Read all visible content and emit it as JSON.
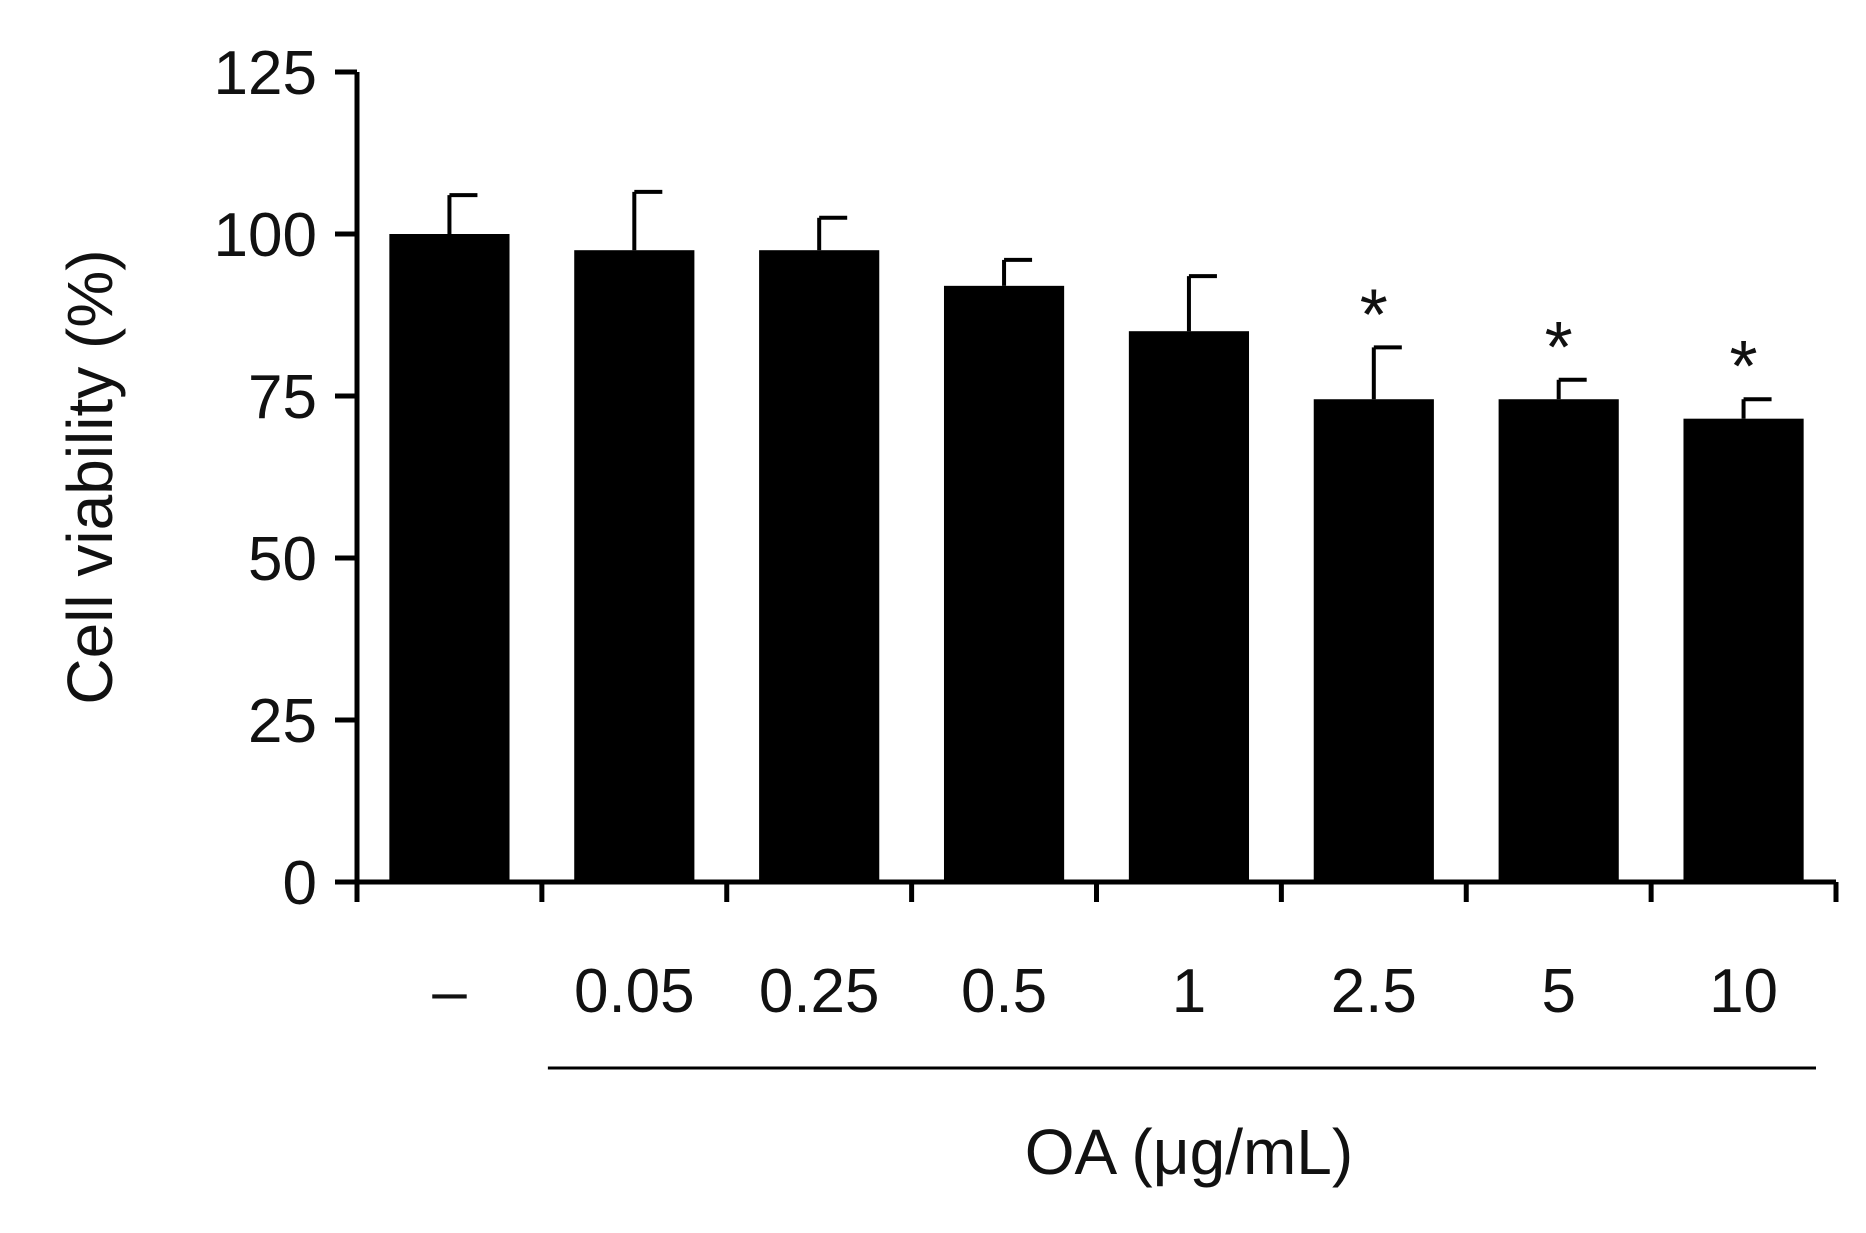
{
  "chart_data": {
    "type": "bar",
    "title": "",
    "ylabel": "Cell viability (%)",
    "xlabel": "OA (μg/mL)",
    "ylim": [
      0,
      125
    ],
    "yticks": [
      0,
      25,
      50,
      75,
      100,
      125
    ],
    "yticks_text": [
      "0",
      "25",
      "50",
      "75",
      "100",
      "125"
    ],
    "categories": [
      "–",
      "0.05",
      "0.25",
      "0.5",
      "1",
      "2.5",
      "5",
      "10"
    ],
    "values": [
      100,
      97.5,
      97.5,
      92,
      85,
      74.5,
      74.5,
      71.5
    ],
    "errors": [
      6,
      9,
      5,
      4,
      8.5,
      8,
      3,
      3
    ],
    "significance": [
      "",
      "",
      "",
      "",
      "",
      "*",
      "*",
      "*"
    ],
    "bar_color": "#000000",
    "grid": false,
    "legend": "none"
  }
}
